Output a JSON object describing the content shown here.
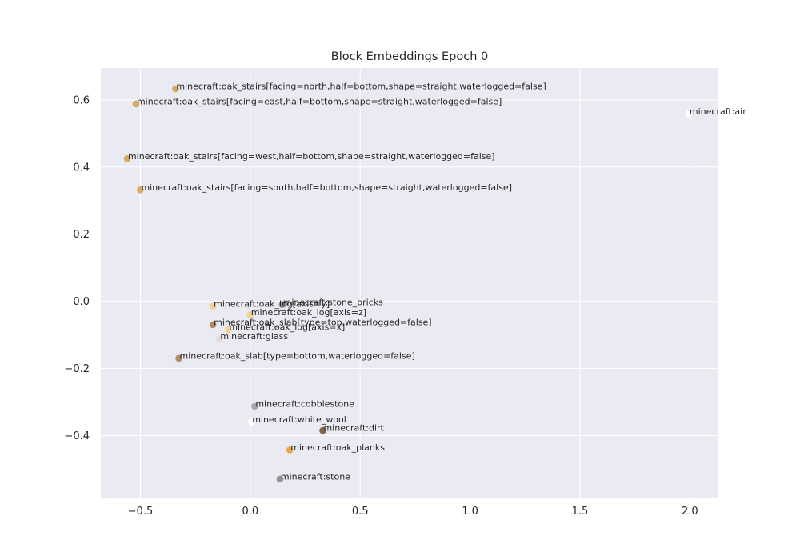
{
  "chart_data": {
    "type": "scatter",
    "title": "Block Embeddings Epoch 0",
    "xlabel": "",
    "ylabel": "",
    "xlim": [
      -0.68,
      2.13
    ],
    "ylim": [
      -0.585,
      0.695
    ],
    "x_ticks": [
      -0.5,
      0.0,
      0.5,
      1.0,
      1.5,
      2.0
    ],
    "x_tick_labels": [
      "−0.5",
      "0.0",
      "0.5",
      "1.0",
      "1.5",
      "2.0"
    ],
    "y_ticks": [
      -0.4,
      -0.2,
      0.0,
      0.2,
      0.4,
      0.6
    ],
    "y_tick_labels": [
      "−0.4",
      "−0.2",
      "0.0",
      "0.2",
      "0.4",
      "0.6"
    ],
    "grid": true,
    "background": "#eaeaf2",
    "grid_color": "#ffffff",
    "points": [
      {
        "label": "minecraft:oak_stairs[facing=north,half=bottom,shape=straight,waterlogged=false]",
        "x": -0.34,
        "y": 0.633,
        "color": "#d4a355"
      },
      {
        "label": "minecraft:oak_stairs[facing=east,half=bottom,shape=straight,waterlogged=false]",
        "x": -0.52,
        "y": 0.588,
        "color": "#d4a355"
      },
      {
        "label": "minecraft:air",
        "x": 1.995,
        "y": 0.558,
        "color": "#ffffff"
      },
      {
        "label": "minecraft:oak_stairs[facing=west,half=bottom,shape=straight,waterlogged=false]",
        "x": -0.56,
        "y": 0.425,
        "color": "#d4a355"
      },
      {
        "label": "minecraft:oak_stairs[facing=south,half=bottom,shape=straight,waterlogged=false]",
        "x": -0.5,
        "y": 0.332,
        "color": "#d4a355"
      },
      {
        "label": "minecraft:oak_log[axis=y]",
        "x": -0.17,
        "y": -0.015,
        "color": "#f0cf8a"
      },
      {
        "label": "minecraft:stone_bricks",
        "x": 0.145,
        "y": -0.01,
        "color": "#8a8a8a"
      },
      {
        "label": "minecraft:oak_log[axis=z]",
        "x": 0.0,
        "y": -0.04,
        "color": "#f0cf8a"
      },
      {
        "label": "minecraft:oak_slab[type=top,waterlogged=false]",
        "x": -0.17,
        "y": -0.07,
        "color": "#a88350"
      },
      {
        "label": "minecraft:oak_log[axis=x]",
        "x": -0.1,
        "y": -0.085,
        "color": "#f0cf8a"
      },
      {
        "label": "minecraft:glass",
        "x": -0.14,
        "y": -0.112,
        "color": "#e8d8d8"
      },
      {
        "label": "minecraft:oak_slab[type=bottom,waterlogged=false]",
        "x": -0.325,
        "y": -0.17,
        "color": "#a88350"
      },
      {
        "label": "minecraft:cobblestone",
        "x": 0.02,
        "y": -0.313,
        "color": "#a0a0a0"
      },
      {
        "label": "minecraft:white_wool",
        "x": 0.005,
        "y": -0.36,
        "color": "#ffffff"
      },
      {
        "label": "minecraft:dirt",
        "x": 0.33,
        "y": -0.385,
        "color": "#7a5535"
      },
      {
        "label": "minecraft:oak_planks",
        "x": 0.18,
        "y": -0.443,
        "color": "#eaa03a"
      },
      {
        "label": "minecraft:stone",
        "x": 0.135,
        "y": -0.53,
        "color": "#8a8a8a"
      }
    ]
  }
}
